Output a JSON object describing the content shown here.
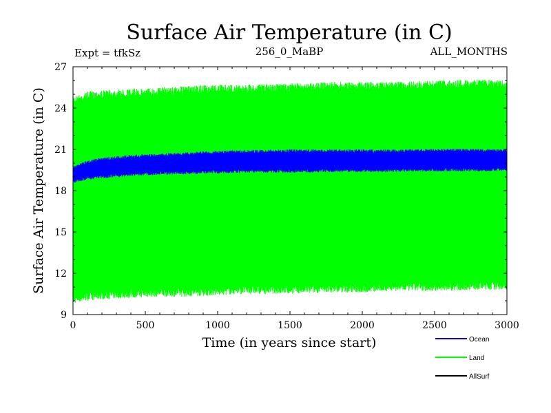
{
  "chart_data": {
    "type": "line",
    "title": "Surface Air Temperature (in C)",
    "subtitle_left": "Expt = tfkSz",
    "subtitle_center": "256_0_MaBP",
    "subtitle_right": "ALL_MONTHS",
    "xlabel": "Time (in years since start)",
    "ylabel": "Surface Air Temperature (in C)",
    "xlim": [
      0,
      3000
    ],
    "ylim": [
      9,
      27
    ],
    "xticks": [
      0,
      500,
      1000,
      1500,
      2000,
      2500,
      3000
    ],
    "yticks": [
      9,
      12,
      15,
      18,
      21,
      24,
      27
    ],
    "x": [
      0,
      50,
      100,
      200,
      400,
      600,
      800,
      1000,
      1200,
      1500,
      1800,
      2000,
      2200,
      2500,
      2800,
      3000
    ],
    "series": [
      {
        "name": "Land",
        "color": "#00ff00",
        "max": [
          24.9,
          25.0,
          25.2,
          25.3,
          25.4,
          25.5,
          25.6,
          25.7,
          25.7,
          25.8,
          25.9,
          25.9,
          25.9,
          26.0,
          26.1,
          26.0
        ],
        "min": [
          9.8,
          9.9,
          10.0,
          10.1,
          10.2,
          10.3,
          10.3,
          10.4,
          10.5,
          10.5,
          10.6,
          10.6,
          10.7,
          10.7,
          10.8,
          10.8
        ]
      },
      {
        "name": "Ocean",
        "color": "#0000ff",
        "max": [
          19.8,
          20.0,
          20.2,
          20.4,
          20.6,
          20.7,
          20.8,
          20.9,
          20.95,
          21.0,
          21.0,
          21.0,
          21.0,
          21.05,
          21.05,
          21.0
        ],
        "min": [
          18.5,
          18.7,
          18.8,
          18.9,
          19.05,
          19.15,
          19.2,
          19.25,
          19.3,
          19.3,
          19.35,
          19.35,
          19.35,
          19.4,
          19.4,
          19.4
        ]
      },
      {
        "name": "AllSurf",
        "color": "#000000",
        "max": [],
        "min": []
      }
    ],
    "legend_position": "bottom-right"
  }
}
